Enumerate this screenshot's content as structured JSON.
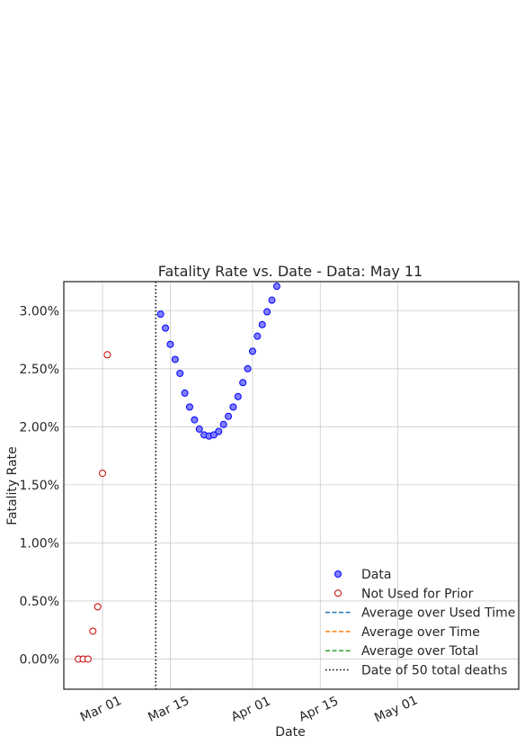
{
  "chart_data": {
    "type": "scatter",
    "title": "Fatality Rate vs. Date - Data: May 11",
    "xlabel": "Date",
    "ylabel": "Fatality Rate",
    "xlim": [
      "2020-02-22",
      "2020-05-26"
    ],
    "ylim": [
      -0.26,
      3.25
    ],
    "x_ticks": [
      {
        "date": "2020-03-01",
        "label": "Mar 01"
      },
      {
        "date": "2020-03-15",
        "label": "Mar 15"
      },
      {
        "date": "2020-04-01",
        "label": "Apr 01"
      },
      {
        "date": "2020-04-15",
        "label": "Apr 15"
      },
      {
        "date": "2020-05-01",
        "label": "May 01"
      }
    ],
    "y_ticks": [
      {
        "value": 0.0,
        "label": "0.00%"
      },
      {
        "value": 0.5,
        "label": "0.50%"
      },
      {
        "value": 1.0,
        "label": "1.00%"
      },
      {
        "value": 1.5,
        "label": "1.50%"
      },
      {
        "value": 2.0,
        "label": "2.00%"
      },
      {
        "value": 2.5,
        "label": "2.50%"
      },
      {
        "value": 3.0,
        "label": "3.00%"
      }
    ],
    "grid": true,
    "legend_position": "bottom-right",
    "series": [
      {
        "name": "Data",
        "marker": "circle",
        "face_color": "#8080ff",
        "edge_color": "#0000ff",
        "points": [
          {
            "x": "2020-03-13",
            "y": 2.97
          },
          {
            "x": "2020-03-14",
            "y": 2.85
          },
          {
            "x": "2020-03-15",
            "y": 2.71
          },
          {
            "x": "2020-03-16",
            "y": 2.58
          },
          {
            "x": "2020-03-17",
            "y": 2.46
          },
          {
            "x": "2020-03-18",
            "y": 2.29
          },
          {
            "x": "2020-03-19",
            "y": 2.17
          },
          {
            "x": "2020-03-20",
            "y": 2.06
          },
          {
            "x": "2020-03-21",
            "y": 1.98
          },
          {
            "x": "2020-03-22",
            "y": 1.93
          },
          {
            "x": "2020-03-23",
            "y": 1.92
          },
          {
            "x": "2020-03-24",
            "y": 1.93
          },
          {
            "x": "2020-03-25",
            "y": 1.96
          },
          {
            "x": "2020-03-26",
            "y": 2.02
          },
          {
            "x": "2020-03-27",
            "y": 2.09
          },
          {
            "x": "2020-03-28",
            "y": 2.17
          },
          {
            "x": "2020-03-29",
            "y": 2.26
          },
          {
            "x": "2020-03-30",
            "y": 2.38
          },
          {
            "x": "2020-03-31",
            "y": 2.5
          },
          {
            "x": "2020-04-01",
            "y": 2.65
          },
          {
            "x": "2020-04-02",
            "y": 2.78
          },
          {
            "x": "2020-04-03",
            "y": 2.88
          },
          {
            "x": "2020-04-04",
            "y": 2.99
          },
          {
            "x": "2020-04-05",
            "y": 3.09
          },
          {
            "x": "2020-04-06",
            "y": 3.21
          }
        ]
      },
      {
        "name": "Not Used for Prior",
        "marker": "circle-open",
        "face_color": "#ffffff",
        "edge_color": "#cc0000",
        "points": [
          {
            "x": "2020-02-25",
            "y": 0.0
          },
          {
            "x": "2020-02-26",
            "y": 0.0
          },
          {
            "x": "2020-02-27",
            "y": 0.0
          },
          {
            "x": "2020-02-28",
            "y": 0.24
          },
          {
            "x": "2020-02-29",
            "y": 0.45
          },
          {
            "x": "2020-03-01",
            "y": 1.6
          },
          {
            "x": "2020-03-02",
            "y": 2.62
          }
        ]
      }
    ],
    "lines": [
      {
        "name": "Average over Used Time",
        "style": "dashed",
        "color": "#1f77b4"
      },
      {
        "name": "Average over Time",
        "style": "dashed",
        "color": "#ff7f0e"
      },
      {
        "name": "Average over Total",
        "style": "dashed",
        "color": "#2ca02c"
      }
    ],
    "vlines": [
      {
        "name": "Date of 50 total deaths",
        "x": "2020-03-12",
        "style": "dotted",
        "color": "#000000"
      }
    ]
  }
}
